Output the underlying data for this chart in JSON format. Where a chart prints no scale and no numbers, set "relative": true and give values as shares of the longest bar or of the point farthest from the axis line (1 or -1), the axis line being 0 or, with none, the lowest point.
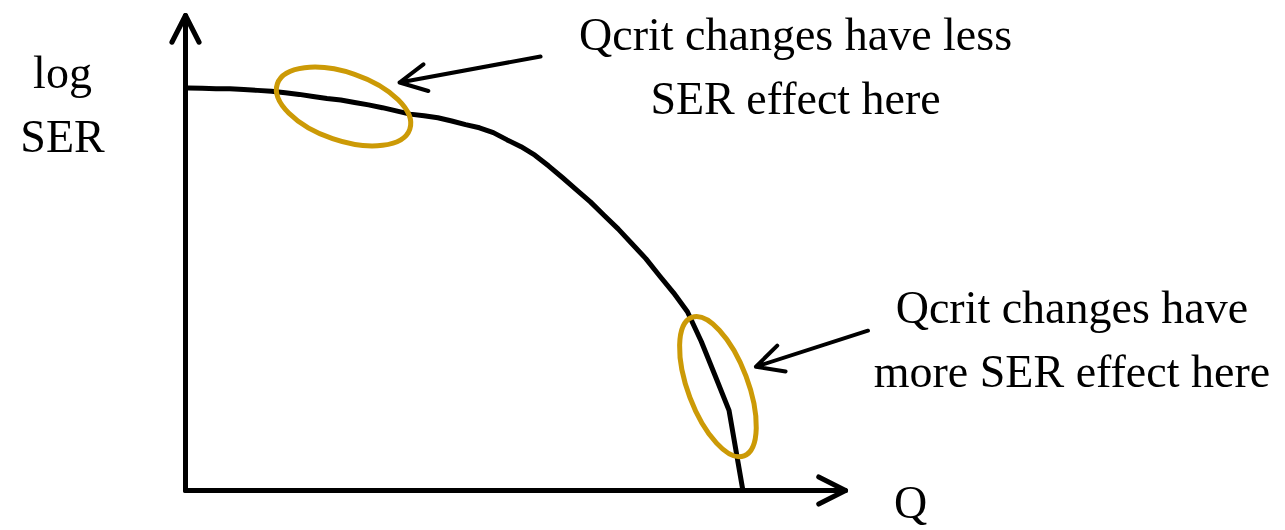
{
  "chart_data": {
    "type": "line",
    "relative": true,
    "xlabel": "Q",
    "ylabel": "log SER",
    "line_style": "solid",
    "categories": [
      null,
      null,
      null,
      null,
      null,
      null,
      null,
      null,
      null,
      null,
      null,
      null,
      null,
      null,
      null,
      null,
      null,
      null,
      null,
      null,
      null,
      null,
      null,
      null,
      null,
      null,
      null,
      null,
      null,
      null,
      null,
      null,
      null,
      null,
      null,
      null,
      null,
      null,
      null,
      null,
      null
    ],
    "series": [
      {
        "color": "#000000",
        "values": [
          1.0,
          0.999,
          0.998,
          0.998,
          0.996,
          0.994,
          0.992,
          0.988,
          0.984,
          0.979,
          0.974,
          0.97,
          0.964,
          0.958,
          0.951,
          0.943,
          0.935,
          0.931,
          0.926,
          0.918,
          0.909,
          0.901,
          0.889,
          0.871,
          0.854,
          0.833,
          0.806,
          0.777,
          0.747,
          0.717,
          0.683,
          0.65,
          0.613,
          0.576,
          0.533,
          0.491,
          0.444,
          0.37,
          0.285,
          0.199,
          0.0
        ]
      }
    ],
    "annotations": [
      "Qcrit changes have less SER effect here",
      "Qcrit changes have more SER effect here"
    ]
  }
}
